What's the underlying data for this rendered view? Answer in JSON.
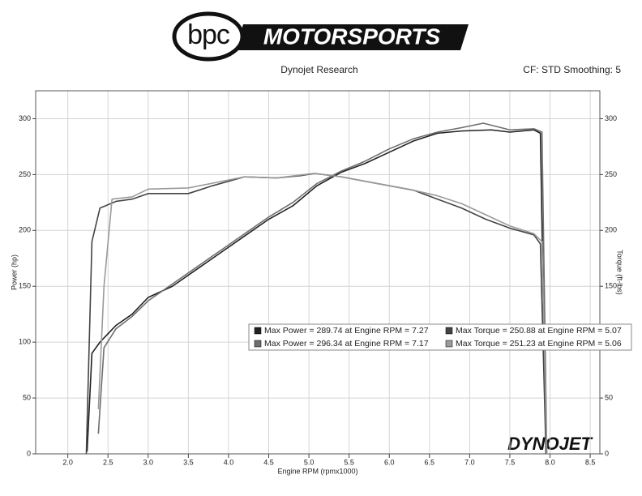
{
  "chart_data": {
    "type": "line",
    "brand": "bpc",
    "brand_name": "MOTORSPORTS",
    "watermark": "DYNOJET",
    "title": "Dynojet Research",
    "subtitle": "CF: STD Smoothing: 5",
    "x_label": "Engine RPM (rpmx1000)",
    "y_label": "Power (hp)",
    "y2_label": "Torque (ft-lbs)",
    "xlim": [
      1.6,
      8.62
    ],
    "xticks": [
      {
        "value": 2,
        "label": "2.0"
      },
      2.5,
      {
        "value": 3,
        "label": "3.0"
      },
      3.5,
      {
        "value": 4,
        "label": "4.0"
      },
      4.5,
      {
        "value": 5,
        "label": "5.0"
      },
      5.5,
      {
        "value": 6,
        "label": "6.0"
      },
      6.5,
      {
        "value": 7,
        "label": "7.0"
      },
      7.5,
      {
        "value": 8,
        "label": "8.0"
      },
      8.5
    ],
    "ylim": [
      0,
      325
    ],
    "yticks": [
      0,
      50,
      100,
      150,
      200,
      250,
      300
    ],
    "y2lim": [
      0,
      325
    ],
    "y2ticks": [
      0,
      50,
      100,
      150,
      200,
      250,
      300
    ],
    "grid": true,
    "series": [
      {
        "name": "Max Power = 289.74 at Engine RPM = 7.27",
        "color": "#222222",
        "x": [
          2.24,
          2.3,
          2.4,
          2.6,
          2.8,
          3.0,
          3.3,
          3.6,
          3.9,
          4.2,
          4.5,
          4.8,
          5.1,
          5.4,
          5.7,
          6.0,
          6.3,
          6.6,
          6.9,
          7.27,
          7.5,
          7.8,
          7.88,
          7.95
        ],
        "values": [
          2,
          90,
          100,
          115,
          125,
          140,
          150,
          165,
          180,
          195,
          210,
          222,
          240,
          252,
          260,
          270,
          280,
          287,
          289,
          290,
          288,
          290,
          287,
          0
        ]
      },
      {
        "name": "Max Power = 296.34 at Engine RPM = 7.17",
        "color": "#6e6e6e",
        "x": [
          2.38,
          2.45,
          2.6,
          2.8,
          3.0,
          3.3,
          3.6,
          3.9,
          4.2,
          4.5,
          4.8,
          5.1,
          5.4,
          5.7,
          6.0,
          6.3,
          6.6,
          6.9,
          7.17,
          7.5,
          7.8,
          7.9,
          7.96
        ],
        "values": [
          18,
          95,
          112,
          123,
          137,
          152,
          167,
          182,
          197,
          212,
          225,
          242,
          253,
          262,
          273,
          282,
          288,
          292,
          296,
          290,
          291,
          288,
          0
        ]
      },
      {
        "name": "Max Torque = 250.88 at Engine RPM = 5.07",
        "color": "#444444",
        "axis": "y2",
        "x": [
          2.23,
          2.3,
          2.4,
          2.6,
          2.8,
          3.0,
          3.5,
          3.8,
          4.2,
          4.6,
          4.9,
          5.07,
          5.4,
          5.7,
          6.0,
          6.3,
          6.6,
          6.9,
          7.2,
          7.5,
          7.8,
          7.88,
          7.95
        ],
        "values": [
          0,
          190,
          220,
          226,
          228,
          233,
          233,
          240,
          248,
          247,
          249,
          251,
          248,
          244,
          240,
          236,
          228,
          220,
          210,
          202,
          196,
          188,
          0
        ]
      },
      {
        "name": "Max Torque = 251.23 at Engine RPM = 5.06",
        "color": "#9a9a9a",
        "axis": "y2",
        "x": [
          2.38,
          2.45,
          2.55,
          2.8,
          3.0,
          3.5,
          4.2,
          4.6,
          5.06,
          5.4,
          5.7,
          6.0,
          6.3,
          6.6,
          6.9,
          7.2,
          7.5,
          7.8,
          7.9,
          7.96
        ],
        "values": [
          40,
          150,
          228,
          230,
          237,
          238,
          248,
          247,
          251,
          248,
          244,
          240,
          236,
          231,
          224,
          214,
          204,
          197,
          190,
          0
        ]
      }
    ]
  }
}
